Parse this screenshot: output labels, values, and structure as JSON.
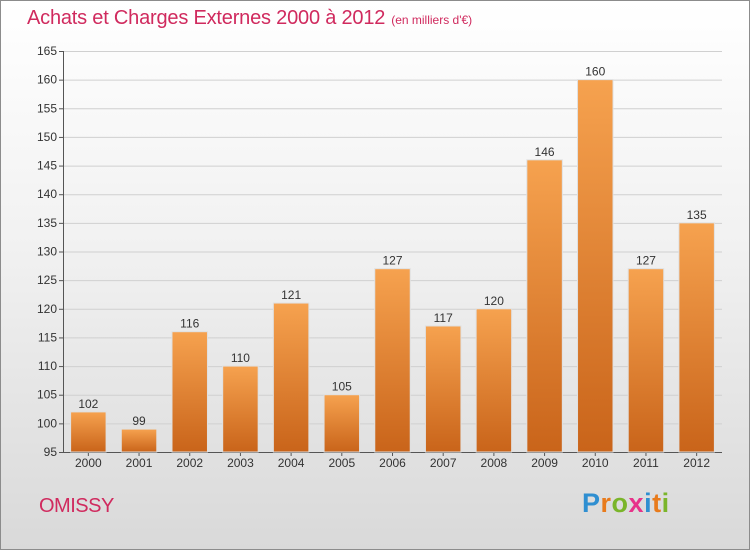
{
  "header": {
    "title": "Achats et Charges Externes 2000 à 2012",
    "unit": "(en milliers d'€)"
  },
  "footer": {
    "commune": "OMISSY",
    "brand": "Proxiti"
  },
  "colors": {
    "title": "#d02a5e",
    "bar_light": "#f6a24f",
    "bar_dark": "#c9641a",
    "brand_letters": [
      "#2f8fd1",
      "#e87b1c",
      "#7ab52a",
      "#e7338a",
      "#2f8fd1",
      "#e87b1c",
      "#7ab52a"
    ]
  },
  "chart_data": {
    "type": "bar",
    "title": "Achats et Charges Externes 2000 à 2012",
    "subtitle": "(en milliers d'€)",
    "xlabel": "",
    "ylabel": "",
    "categories": [
      "2000",
      "2001",
      "2002",
      "2003",
      "2004",
      "2005",
      "2006",
      "2007",
      "2008",
      "2009",
      "2010",
      "2011",
      "2012"
    ],
    "values": [
      102,
      99,
      116,
      110,
      121,
      105,
      127,
      117,
      120,
      146,
      160,
      127,
      135
    ],
    "ylim": [
      95,
      165
    ],
    "yticks": [
      95,
      100,
      105,
      110,
      115,
      120,
      125,
      130,
      135,
      140,
      145,
      150,
      155,
      160,
      165
    ],
    "grid": true,
    "data_labels": true
  }
}
